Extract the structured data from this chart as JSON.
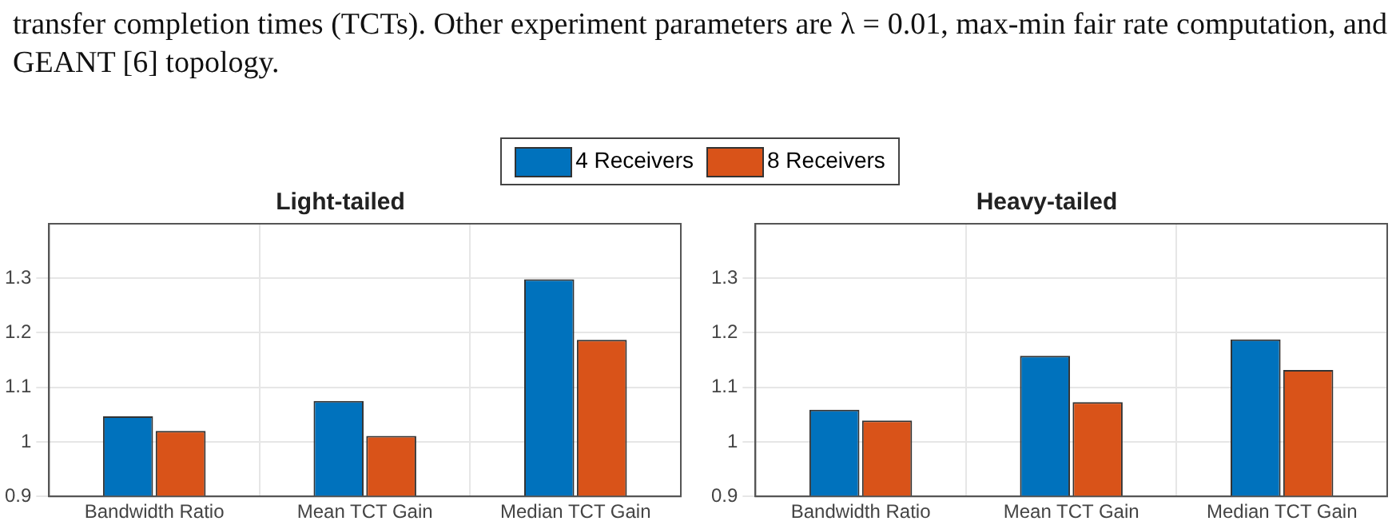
{
  "chart_data": [
    {
      "type": "bar",
      "title": "Light-tailed",
      "categories": [
        "Bandwidth Ratio",
        "Mean TCT Gain",
        "Median TCT Gain"
      ],
      "series": [
        {
          "name": "4 Receivers",
          "color": "#0072bd",
          "values": [
            1.047,
            1.075,
            1.298
          ]
        },
        {
          "name": "8 Receivers",
          "color": "#d95319",
          "values": [
            1.02,
            1.011,
            1.187
          ]
        }
      ],
      "ylim": [
        0.9,
        1.4
      ],
      "yticks": [
        0.9,
        1,
        1.1,
        1.2,
        1.3
      ],
      "grid": true,
      "legend": "top",
      "annotations": [
        "transfer completion times (TCTs).  Other experiment parameters are λ = 0.01, max-min fair rate computation, and GEANT [6] topology."
      ]
    },
    {
      "type": "bar",
      "title": "Heavy-tailed",
      "categories": [
        "Bandwidth Ratio",
        "Mean TCT Gain",
        "Median TCT Gain"
      ],
      "series": [
        {
          "color": "#0072bd",
          "values": [
            1.059,
            1.158,
            1.188
          ]
        },
        {
          "color": "#d95319",
          "values": [
            1.039,
            1.073,
            1.132
          ]
        }
      ],
      "ylim": [
        0.9,
        1.4
      ],
      "yticks": [
        0.9,
        1,
        1.1,
        1.2,
        1.3
      ],
      "grid": true
    }
  ]
}
